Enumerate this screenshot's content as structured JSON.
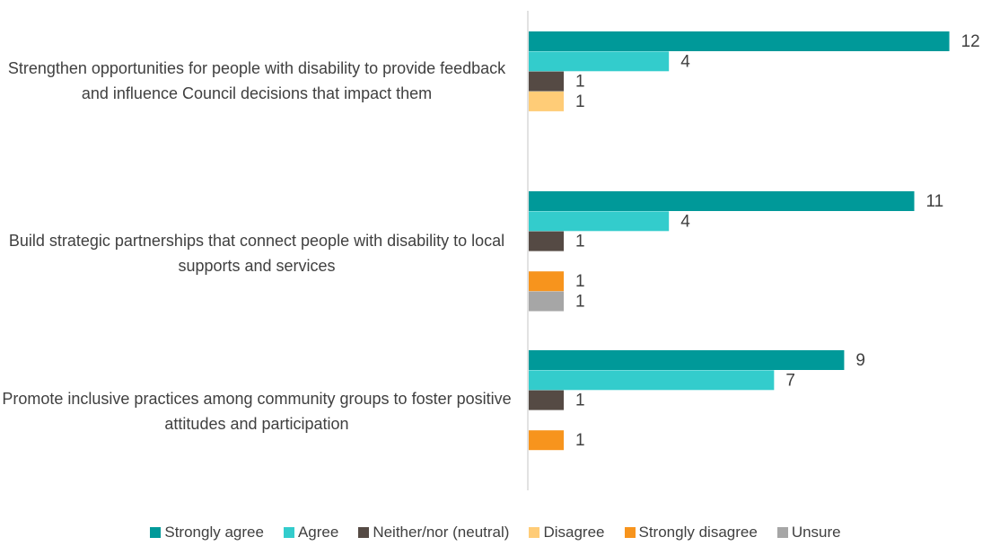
{
  "chart_data": {
    "type": "bar",
    "orientation": "horizontal",
    "categories": [
      "Strengthen opportunities for people with disability to provide feedback and influence Council decisions that impact them",
      "Build strategic partnerships that connect people with disability to local supports and services",
      "Promote inclusive practices among community groups to foster positive attitudes and participation"
    ],
    "series": [
      {
        "name": "Strongly agree",
        "color": "#009999",
        "values": [
          12,
          11,
          9
        ]
      },
      {
        "name": "Agree",
        "color": "#33CCCC",
        "values": [
          4,
          4,
          7
        ]
      },
      {
        "name": "Neither/nor (neutral)",
        "color": "#554A44",
        "values": [
          1,
          1,
          1
        ]
      },
      {
        "name": "Disagree",
        "color": "#FFCC77",
        "values": [
          1,
          0,
          0
        ]
      },
      {
        "name": "Strongly disagree",
        "color": "#F7941D",
        "values": [
          0,
          1,
          1
        ]
      },
      {
        "name": "Unsure",
        "color": "#A6A6A6",
        "values": [
          0,
          1,
          0
        ]
      }
    ],
    "xlim": [
      0,
      12.6
    ],
    "grid": false,
    "legend_position": "bottom"
  }
}
